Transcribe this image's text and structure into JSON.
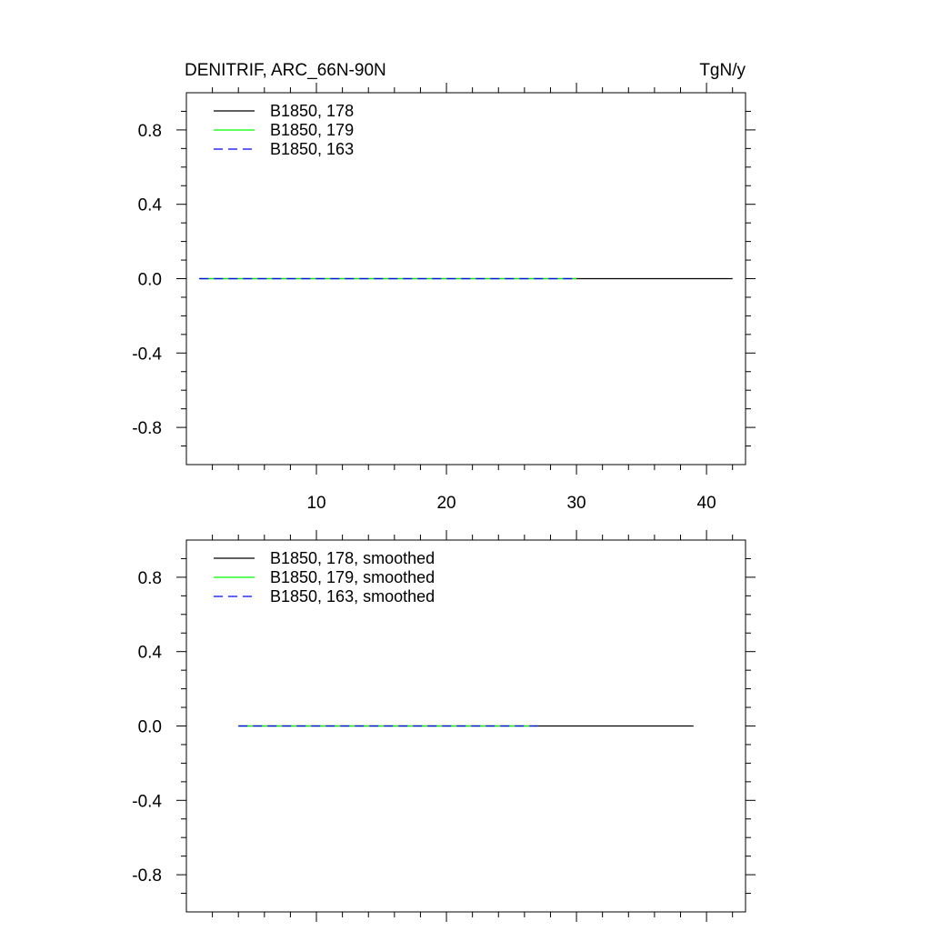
{
  "chart_data": [
    {
      "type": "line",
      "title": "DENITRIF, ARC_66N-90N",
      "units": "TgN/y",
      "xlabel": "",
      "ylabel": "",
      "xlim": [
        0,
        43
      ],
      "ylim": [
        -1,
        1
      ],
      "xticks": [
        10,
        20,
        30,
        40
      ],
      "xtick_labels": [
        "10",
        "20",
        "30",
        "40"
      ],
      "yticks": [
        -0.8,
        -0.4,
        0.0,
        0.4,
        0.8
      ],
      "ytick_labels": [
        "-0.8",
        "-0.4",
        "0.0",
        "0.4",
        "0.8"
      ],
      "grid": false,
      "legend_position": "top-left",
      "series": [
        {
          "name": "B1850, 178",
          "color": "#000000",
          "dash": "solid",
          "x_range": [
            1,
            42
          ],
          "y": 0.0
        },
        {
          "name": "B1850, 179",
          "color": "#00ff00",
          "dash": "solid",
          "x_range": [
            1,
            30
          ],
          "y": 0.0
        },
        {
          "name": "B1850, 163",
          "color": "#0000ff",
          "dash": "dashed",
          "x_range": [
            1,
            30
          ],
          "y": 0.0
        }
      ]
    },
    {
      "type": "line",
      "title": "",
      "xlabel": "",
      "ylabel": "",
      "xlim": [
        0,
        43
      ],
      "ylim": [
        -1,
        1
      ],
      "xticks": [
        10,
        20,
        30,
        40
      ],
      "yticks": [
        -0.8,
        -0.4,
        0.0,
        0.4,
        0.8
      ],
      "ytick_labels": [
        "-0.8",
        "-0.4",
        "0.0",
        "0.4",
        "0.8"
      ],
      "grid": false,
      "legend_position": "top-left",
      "series": [
        {
          "name": "B1850, 178, smoothed",
          "color": "#000000",
          "dash": "solid",
          "x_range": [
            4,
            39
          ],
          "y": 0.0
        },
        {
          "name": "B1850, 179, smoothed",
          "color": "#00ff00",
          "dash": "solid",
          "x_range": [
            4,
            27
          ],
          "y": 0.0
        },
        {
          "name": "B1850, 163, smoothed",
          "color": "#0000ff",
          "dash": "dashed",
          "x_range": [
            4,
            27
          ],
          "y": 0.0
        }
      ]
    }
  ]
}
